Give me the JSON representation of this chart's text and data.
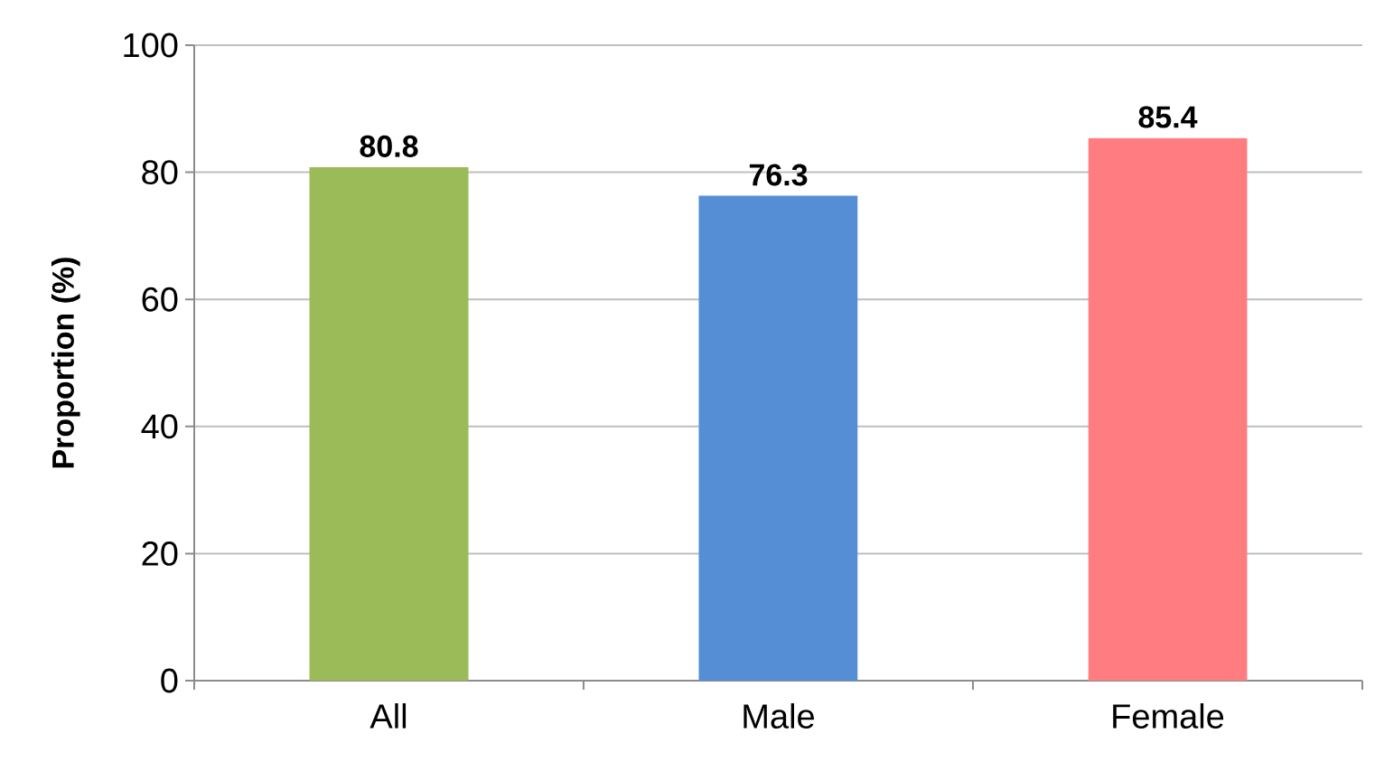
{
  "chart_data": {
    "type": "bar",
    "ylabel": "Proportion (%)",
    "categories": [
      "All",
      "Male",
      "Female"
    ],
    "values": [
      80.8,
      76.3,
      85.4
    ],
    "colors": [
      "#9bbb59",
      "#558ed5",
      "#ff7c80"
    ],
    "ylim": [
      0,
      100
    ],
    "yticks": [
      0,
      20,
      40,
      60,
      80,
      100
    ],
    "grid": "y",
    "data_labels": true
  }
}
